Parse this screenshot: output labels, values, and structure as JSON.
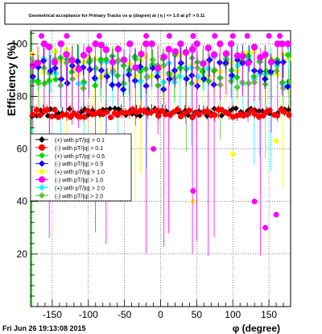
{
  "chart_data": {
    "type": "scatter",
    "title": "Geometrical acceptance for Primary Tracks vs φ (degree) at | η | <= 1.0 at pT > 0.11",
    "xlabel": "φ (degree)",
    "ylabel": "Efficiency (%)",
    "xlim": [
      -180,
      180
    ],
    "ylim": [
      0,
      105
    ],
    "x_ticks": [
      -150,
      -100,
      -50,
      0,
      50,
      100,
      150
    ],
    "y_ticks": [
      20,
      40,
      60,
      80,
      100
    ],
    "grid": true,
    "legend_position": "middle-left",
    "series": [
      {
        "name": "(+) with pT/|q| > 0.1",
        "color": "#000000",
        "marker": "diamond",
        "approx_mean": 74,
        "error_bar_range": [
          70,
          77
        ]
      },
      {
        "name": "(-) with pT/|q| > 0.1",
        "color": "#ff0000",
        "marker": "circle",
        "approx_mean": 73.5,
        "error_bar_range": [
          69,
          77
        ]
      },
      {
        "name": "(+) with pT/|q| > 0.5",
        "color": "#00dd00",
        "marker": "diamond",
        "approx_mean": 90,
        "error_bar_range": [
          80,
          100
        ]
      },
      {
        "name": "(-) with pT/|q| > 0.5",
        "color": "#0000ff",
        "marker": "diamond",
        "approx_mean": 88,
        "error_bar_range": [
          75,
          100
        ]
      },
      {
        "name": "(+) with pT/|q| > 1.0",
        "color": "#ffff00",
        "marker": "diamond",
        "approx_mean": 92,
        "error_bar_range": [
          40,
          100
        ]
      },
      {
        "name": "(-) with pT/|q| > 1.0",
        "color": "#ff00ff",
        "marker": "circle",
        "approx_mean": 96,
        "error_bar_range": [
          15,
          100
        ]
      },
      {
        "name": "(+) with pT/|q| > 2.0",
        "color": "#00ffff",
        "marker": "diamond",
        "approx_mean": 90,
        "error_bar_range": [
          50,
          100
        ]
      },
      {
        "name": "(-) with pT/|q| > 2.0",
        "color": "#55cc33",
        "marker": "diamond",
        "approx_mean": 89,
        "error_bar_range": [
          50,
          100
        ]
      }
    ]
  },
  "footer": {
    "timestamp": "Fri Jun 26 19:13:08 2015"
  }
}
